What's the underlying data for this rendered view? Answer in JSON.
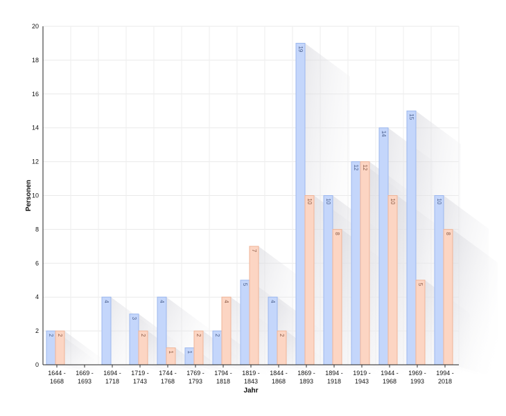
{
  "chart_data": {
    "type": "bar",
    "xlabel": "Jahr",
    "ylabel": "Personen",
    "ylim": [
      0,
      20
    ],
    "yticks": [
      0,
      2,
      4,
      6,
      8,
      10,
      12,
      14,
      16,
      18,
      20
    ],
    "grid": true,
    "legend": "none",
    "categories": [
      [
        "1644 -",
        "1668"
      ],
      [
        "1669 -",
        "1693"
      ],
      [
        "1694 -",
        "1718"
      ],
      [
        "1719 -",
        "1743"
      ],
      [
        "1744 -",
        "1768"
      ],
      [
        "1769 -",
        "1793"
      ],
      [
        "1794 -",
        "1818"
      ],
      [
        "1819 -",
        "1843"
      ],
      [
        "1844 -",
        "1868"
      ],
      [
        "1869 -",
        "1893"
      ],
      [
        "1894 -",
        "1918"
      ],
      [
        "1919 -",
        "1943"
      ],
      [
        "1944 -",
        "1968"
      ],
      [
        "1969 -",
        "1993"
      ],
      [
        "1994 -",
        "2018"
      ]
    ],
    "series": [
      {
        "values": [
          2,
          0,
          4,
          3,
          4,
          1,
          2,
          5,
          4,
          19,
          10,
          12,
          14,
          15,
          10
        ],
        "color": "#c4d6fb",
        "stroke": "#9bb7ee",
        "label_color": "#4a5f8c"
      },
      {
        "values": [
          2,
          0,
          0,
          2,
          1,
          2,
          4,
          7,
          2,
          10,
          8,
          12,
          10,
          5,
          8
        ],
        "color": "#fcd5c3",
        "stroke": "#efb497",
        "label_color": "#8a5a45"
      }
    ]
  }
}
